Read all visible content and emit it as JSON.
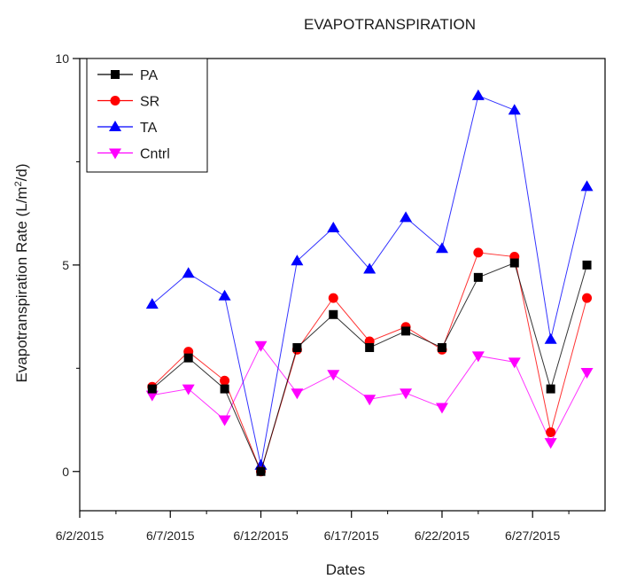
{
  "chart_data": {
    "type": "line",
    "title": "EVAPOTRANSPIRATION",
    "xlabel": "Dates",
    "ylabel_main": "Evapotranspiration Rate (L/m",
    "ylabel_sup": "2",
    "ylabel_tail": "/d)",
    "x_ticks": [
      "6/2/2015",
      "6/7/2015",
      "6/12/2015",
      "6/17/2015",
      "6/22/2015",
      "6/27/2015"
    ],
    "y_ticks": [
      "0",
      "5",
      "10"
    ],
    "xlim": [
      "2015-06-02",
      "2015-07-01"
    ],
    "ylim": [
      -0.95,
      10
    ],
    "x": [
      "2015-06-06",
      "2015-06-08",
      "2015-06-10",
      "2015-06-12",
      "2015-06-14",
      "2015-06-16",
      "2015-06-18",
      "2015-06-20",
      "2015-06-22",
      "2015-06-24",
      "2015-06-26",
      "2015-06-28",
      "2015-06-30"
    ],
    "legend_position": "top-left",
    "series": [
      {
        "name": "PA",
        "color": "#000000",
        "marker": "square",
        "values": [
          2.0,
          2.75,
          2.0,
          0.0,
          3.0,
          3.8,
          3.0,
          3.4,
          3.0,
          4.7,
          5.05,
          2.0,
          5.0
        ]
      },
      {
        "name": "SR",
        "color": "#ff0000",
        "marker": "circle",
        "values": [
          2.05,
          2.9,
          2.2,
          0.0,
          2.95,
          4.2,
          3.15,
          3.5,
          2.95,
          5.3,
          5.2,
          0.95,
          4.2
        ]
      },
      {
        "name": "TA",
        "color": "#0000ff",
        "marker": "triangle-up",
        "values": [
          4.05,
          4.8,
          4.25,
          0.15,
          5.1,
          5.9,
          4.9,
          6.15,
          5.4,
          9.1,
          8.75,
          3.2,
          6.9
        ]
      },
      {
        "name": "Cntrl",
        "color": "#ff00ff",
        "marker": "triangle-down",
        "values": [
          1.85,
          2.0,
          1.25,
          3.05,
          1.9,
          2.35,
          1.75,
          1.9,
          1.55,
          2.8,
          2.65,
          0.7,
          2.4
        ]
      }
    ]
  }
}
